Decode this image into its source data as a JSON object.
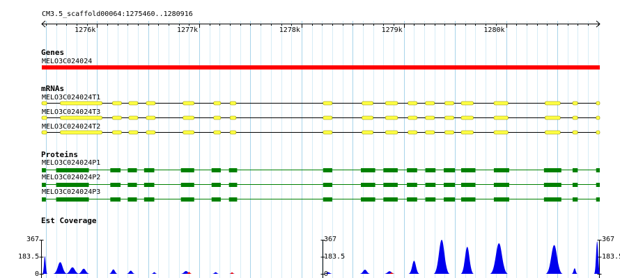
{
  "view": {
    "location": "CM3.5_scaffold00064:1275460..1280916",
    "start": 1275460,
    "end": 1280916,
    "ruler_ticks": [
      {
        "pos": 1276000,
        "label": "1276k"
      },
      {
        "pos": 1277000,
        "label": "1277k"
      },
      {
        "pos": 1278000,
        "label": "1278k"
      },
      {
        "pos": 1279000,
        "label": "1279k"
      },
      {
        "pos": 1280000,
        "label": "1280k"
      }
    ]
  },
  "colors": {
    "grid_major": "#a8d4ea",
    "grid_minor": "#d6ecf6",
    "gene": "#ff0000",
    "mrna_fill": "#ffff44",
    "mrna_stroke": "#8a8a00",
    "protein": "#008000",
    "coverage_fill": "#0000ee",
    "coverage_secondary": "#ee0000"
  },
  "tracks": {
    "genes": {
      "title": "Genes",
      "features": [
        {
          "label": "MELO3C024024",
          "start": 1275460,
          "end": 1280916
        }
      ]
    },
    "mrnas": {
      "title": "mRNAs",
      "features": [
        {
          "label": "MELO3C024024T1",
          "start": 1275460,
          "end": 1280916,
          "exons": [
            [
              1275460,
              1275510
            ],
            [
              1275640,
              1276050
            ],
            [
              1276150,
              1276240
            ],
            [
              1276310,
              1276400
            ],
            [
              1276480,
              1276570
            ],
            [
              1276840,
              1276950
            ],
            [
              1277140,
              1277210
            ],
            [
              1277300,
              1277360
            ],
            [
              1278210,
              1278300
            ],
            [
              1278590,
              1278700
            ],
            [
              1278820,
              1278940
            ],
            [
              1279040,
              1279130
            ],
            [
              1279210,
              1279300
            ],
            [
              1279400,
              1279490
            ],
            [
              1279560,
              1279680
            ],
            [
              1279880,
              1280020
            ],
            [
              1280380,
              1280530
            ],
            [
              1280650,
              1280700
            ],
            [
              1280880,
              1280916
            ]
          ]
        },
        {
          "label": "MELO3C024024T3",
          "start": 1275460,
          "end": 1280916,
          "exons": [
            [
              1275460,
              1275510
            ],
            [
              1275640,
              1276050
            ],
            [
              1276150,
              1276240
            ],
            [
              1276310,
              1276400
            ],
            [
              1276480,
              1276570
            ],
            [
              1276840,
              1276950
            ],
            [
              1277140,
              1277210
            ],
            [
              1277300,
              1277360
            ],
            [
              1278210,
              1278300
            ],
            [
              1278590,
              1278700
            ],
            [
              1278820,
              1278940
            ],
            [
              1279040,
              1279130
            ],
            [
              1279210,
              1279300
            ],
            [
              1279400,
              1279490
            ],
            [
              1279560,
              1279680
            ],
            [
              1279880,
              1280020
            ],
            [
              1280380,
              1280530
            ],
            [
              1280650,
              1280700
            ],
            [
              1280880,
              1280916
            ]
          ]
        },
        {
          "label": "MELO3C024024T2",
          "start": 1275460,
          "end": 1280916,
          "exons": [
            [
              1275460,
              1275510
            ],
            [
              1275640,
              1276050
            ],
            [
              1276150,
              1276240
            ],
            [
              1276310,
              1276400
            ],
            [
              1276480,
              1276570
            ],
            [
              1276840,
              1276950
            ],
            [
              1277140,
              1277210
            ],
            [
              1277300,
              1277360
            ],
            [
              1278210,
              1278300
            ],
            [
              1278590,
              1278700
            ],
            [
              1278820,
              1278940
            ],
            [
              1279040,
              1279130
            ],
            [
              1279210,
              1279300
            ],
            [
              1279400,
              1279490
            ],
            [
              1279560,
              1279680
            ],
            [
              1279880,
              1280020
            ],
            [
              1280380,
              1280530
            ],
            [
              1280650,
              1280700
            ],
            [
              1280880,
              1280916
            ]
          ]
        }
      ]
    },
    "proteins": {
      "title": "Proteins",
      "features": [
        {
          "label": "MELO3C024024P1",
          "start": 1275460,
          "end": 1280916,
          "exons": [
            [
              1275460,
              1275500
            ],
            [
              1275600,
              1275920
            ],
            [
              1276130,
              1276230
            ],
            [
              1276300,
              1276390
            ],
            [
              1276460,
              1276560
            ],
            [
              1276820,
              1276950
            ],
            [
              1277120,
              1277210
            ],
            [
              1277290,
              1277370
            ],
            [
              1278210,
              1278300
            ],
            [
              1278580,
              1278720
            ],
            [
              1278800,
              1278940
            ],
            [
              1279030,
              1279130
            ],
            [
              1279210,
              1279310
            ],
            [
              1279390,
              1279500
            ],
            [
              1279560,
              1279700
            ],
            [
              1279880,
              1280030
            ],
            [
              1280370,
              1280540
            ],
            [
              1280650,
              1280700
            ],
            [
              1280880,
              1280916
            ]
          ]
        },
        {
          "label": "MELO3C024024P2",
          "start": 1275460,
          "end": 1280916,
          "exons": [
            [
              1275460,
              1275500
            ],
            [
              1275600,
              1275920
            ],
            [
              1276130,
              1276230
            ],
            [
              1276300,
              1276390
            ],
            [
              1276460,
              1276560
            ],
            [
              1276820,
              1276950
            ],
            [
              1277120,
              1277210
            ],
            [
              1277290,
              1277370
            ],
            [
              1278210,
              1278300
            ],
            [
              1278580,
              1278720
            ],
            [
              1278800,
              1278940
            ],
            [
              1279030,
              1279130
            ],
            [
              1279210,
              1279310
            ],
            [
              1279390,
              1279500
            ],
            [
              1279560,
              1279700
            ],
            [
              1279880,
              1280030
            ],
            [
              1280370,
              1280540
            ],
            [
              1280650,
              1280700
            ],
            [
              1280880,
              1280916
            ]
          ]
        },
        {
          "label": "MELO3C024024P3",
          "start": 1275460,
          "end": 1280916,
          "exons": [
            [
              1275460,
              1275500
            ],
            [
              1275600,
              1275920
            ],
            [
              1276130,
              1276230
            ],
            [
              1276300,
              1276390
            ],
            [
              1276460,
              1276560
            ],
            [
              1276820,
              1276950
            ],
            [
              1277120,
              1277210
            ],
            [
              1277290,
              1277370
            ],
            [
              1278210,
              1278300
            ],
            [
              1278580,
              1278720
            ],
            [
              1278800,
              1278940
            ],
            [
              1279030,
              1279130
            ],
            [
              1279210,
              1279310
            ],
            [
              1279390,
              1279500
            ],
            [
              1279560,
              1279700
            ],
            [
              1279880,
              1280030
            ],
            [
              1280370,
              1280540
            ],
            [
              1280650,
              1280700
            ],
            [
              1280880,
              1280916
            ]
          ]
        }
      ]
    },
    "coverage": {
      "title": "Est Coverage",
      "axis_max_label": "367",
      "axis_mid_label": "183.5",
      "axis_min_label": "0",
      "max": 367,
      "axis_positions": [
        1275460,
        1278210,
        1280916
      ],
      "peaks": [
        {
          "pos": 1275490,
          "half": 25,
          "value": 190
        },
        {
          "pos": 1275640,
          "half": 70,
          "value": 125
        },
        {
          "pos": 1275760,
          "half": 70,
          "value": 70
        },
        {
          "pos": 1275870,
          "half": 60,
          "value": 55
        },
        {
          "pos": 1276160,
          "half": 45,
          "value": 48
        },
        {
          "pos": 1276330,
          "half": 45,
          "value": 35
        },
        {
          "pos": 1276560,
          "half": 30,
          "value": 18
        },
        {
          "pos": 1276870,
          "half": 55,
          "value": 30
        },
        {
          "pos": 1277160,
          "half": 35,
          "value": 18
        },
        {
          "pos": 1277320,
          "half": 30,
          "value": 14
        },
        {
          "pos": 1278260,
          "half": 45,
          "value": 18
        },
        {
          "pos": 1278620,
          "half": 55,
          "value": 45
        },
        {
          "pos": 1278860,
          "half": 55,
          "value": 28
        },
        {
          "pos": 1279100,
          "half": 55,
          "value": 140
        },
        {
          "pos": 1279370,
          "half": 80,
          "value": 367
        },
        {
          "pos": 1279620,
          "half": 65,
          "value": 290
        },
        {
          "pos": 1279930,
          "half": 90,
          "value": 330
        },
        {
          "pos": 1280470,
          "half": 85,
          "value": 310
        },
        {
          "pos": 1280670,
          "half": 30,
          "value": 60
        },
        {
          "pos": 1280890,
          "half": 30,
          "value": 350
        }
      ],
      "secondary_peaks": [
        {
          "pos": 1276900,
          "half": 30,
          "value": 20
        },
        {
          "pos": 1277320,
          "half": 25,
          "value": 16
        },
        {
          "pos": 1278880,
          "half": 30,
          "value": 14
        }
      ]
    }
  }
}
